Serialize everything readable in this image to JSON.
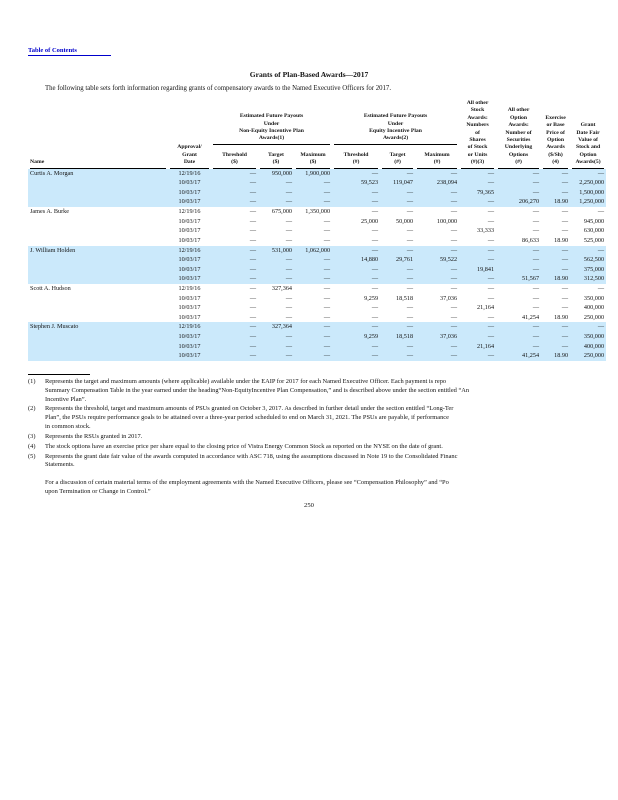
{
  "page": {
    "toc_link": "Table of Contents",
    "title": "Grants of Plan-Based Awards—2017",
    "intro": "The following table sets forth information regarding grants of compensatory awards to the Named Executive Officers for 2017.",
    "page_number": "250"
  },
  "colors": {
    "row_highlight": "#cbe9fb",
    "link_blue": "#0000cc"
  },
  "table": {
    "header": {
      "name": "Name",
      "date": "Approval/\nGrant\nDate",
      "group_non_equity": "Estimated Future Payouts\nUnder\nNon-Equity Incentive Plan\nAwards(1)",
      "group_equity": "Estimated Future Payouts\nUnder\nEquity Incentive Plan\nAwards(2)",
      "threshold_usd": "Threshold\n($)",
      "target_usd": "Target\n($)",
      "maximum_usd": "Maximum\n($)",
      "threshold_num": "Threshold\n(#)",
      "target_num": "Target\n(#)",
      "maximum_num": "Maximum\n(#)",
      "stock_awards": "All other\nStock\nAwards:\nNumbers\nof\nShares\nof Stock\nor Units\n(#)(3)",
      "option_awards": "All other\nOption\nAwards:\nNumber of\nSecurities\nUnderlying\nOptions\n(#)",
      "exercise_price": "Exercise\nor Base\nPrice of\nOption\nAwards\n($/Sh)\n(4)",
      "grant_date_fv": "Grant\nDate Fair\nValue of\nStock and\nOption\nAwards(5)"
    },
    "rows": [
      {
        "name": "Curtis A. Morgan",
        "date": "12/19/16",
        "hl": true,
        "cells": [
          "—",
          "950,000",
          "1,900,000",
          "—",
          "—",
          "—",
          "—",
          "—",
          "—",
          "—"
        ]
      },
      {
        "name": "",
        "date": "10/03/17",
        "hl": true,
        "cells": [
          "—",
          "—",
          "—",
          "59,523",
          "119,047",
          "238,094",
          "—",
          "—",
          "—",
          "2,250,000"
        ]
      },
      {
        "name": "",
        "date": "10/03/17",
        "hl": true,
        "cells": [
          "—",
          "—",
          "—",
          "—",
          "—",
          "—",
          "79,365",
          "—",
          "—",
          "1,500,000"
        ]
      },
      {
        "name": "",
        "date": "10/03/17",
        "hl": true,
        "cells": [
          "—",
          "—",
          "—",
          "—",
          "—",
          "—",
          "—",
          "206,270",
          "18.90",
          "1,250,000"
        ]
      },
      {
        "name": "James A. Burke",
        "date": "12/19/16",
        "hl": false,
        "cells": [
          "—",
          "675,000",
          "1,350,000",
          "—",
          "—",
          "—",
          "—",
          "—",
          "—",
          "—"
        ]
      },
      {
        "name": "",
        "date": "10/03/17",
        "hl": false,
        "cells": [
          "—",
          "—",
          "—",
          "25,000",
          "50,000",
          "100,000",
          "—",
          "—",
          "—",
          "945,000"
        ]
      },
      {
        "name": "",
        "date": "10/03/17",
        "hl": false,
        "cells": [
          "—",
          "—",
          "—",
          "—",
          "—",
          "—",
          "33,333",
          "—",
          "—",
          "630,000"
        ]
      },
      {
        "name": "",
        "date": "10/03/17",
        "hl": false,
        "cells": [
          "—",
          "—",
          "—",
          "—",
          "—",
          "—",
          "—",
          "86,633",
          "18.90",
          "525,000"
        ]
      },
      {
        "name": "J. William Holden",
        "date": "12/19/16",
        "hl": true,
        "cells": [
          "—",
          "531,000",
          "1,062,000",
          "—",
          "—",
          "—",
          "—",
          "—",
          "—",
          "—"
        ]
      },
      {
        "name": "",
        "date": "10/03/17",
        "hl": true,
        "cells": [
          "—",
          "—",
          "—",
          "14,880",
          "29,761",
          "59,522",
          "—",
          "—",
          "—",
          "562,500"
        ]
      },
      {
        "name": "",
        "date": "10/03/17",
        "hl": true,
        "cells": [
          "—",
          "—",
          "—",
          "—",
          "—",
          "—",
          "19,841",
          "—",
          "—",
          "375,000"
        ]
      },
      {
        "name": "",
        "date": "10/03/17",
        "hl": true,
        "cells": [
          "—",
          "—",
          "—",
          "—",
          "—",
          "—",
          "—",
          "51,567",
          "18.90",
          "312,500"
        ]
      },
      {
        "name": "Scott A. Hudson",
        "date": "12/19/16",
        "hl": false,
        "cells": [
          "—",
          "327,364",
          "—",
          "—",
          "—",
          "—",
          "—",
          "—",
          "—",
          "—"
        ]
      },
      {
        "name": "",
        "date": "10/03/17",
        "hl": false,
        "cells": [
          "—",
          "—",
          "—",
          "9,259",
          "18,518",
          "37,036",
          "—",
          "—",
          "—",
          "350,000"
        ]
      },
      {
        "name": "",
        "date": "10/03/17",
        "hl": false,
        "cells": [
          "—",
          "—",
          "—",
          "—",
          "—",
          "—",
          "21,164",
          "—",
          "—",
          "400,000"
        ]
      },
      {
        "name": "",
        "date": "10/03/17",
        "hl": false,
        "cells": [
          "—",
          "—",
          "—",
          "—",
          "—",
          "—",
          "—",
          "41,254",
          "18.90",
          "250,000"
        ]
      },
      {
        "name": "Stephen J. Muscato",
        "date": "12/19/16",
        "hl": true,
        "cells": [
          "—",
          "327,364",
          "—",
          "—",
          "—",
          "—",
          "—",
          "—",
          "—",
          "—"
        ]
      },
      {
        "name": "",
        "date": "10/03/17",
        "hl": true,
        "cells": [
          "—",
          "—",
          "—",
          "9,259",
          "18,518",
          "37,036",
          "—",
          "—",
          "—",
          "350,000"
        ]
      },
      {
        "name": "",
        "date": "10/03/17",
        "hl": true,
        "cells": [
          "—",
          "—",
          "—",
          "—",
          "—",
          "—",
          "21,164",
          "—",
          "—",
          "400,000"
        ]
      },
      {
        "name": "",
        "date": "10/03/17",
        "hl": true,
        "cells": [
          "—",
          "—",
          "—",
          "—",
          "—",
          "—",
          "—",
          "41,254",
          "18.90",
          "250,000"
        ]
      }
    ]
  },
  "footnotes": [
    {
      "marker": "(1)",
      "lines": [
        "Represents the target and maximum amounts (where applicable) available under the EAIP for 2017 for each Named Executive Officer. Each payment is repo",
        "Summary Compensation Table in the year earned under the heading“Non-EquityIncentive Plan Compensation,” and is described above under the section entitled “An",
        "Incentive Plan”."
      ]
    },
    {
      "marker": "(2)",
      "lines": [
        "Represents the threshold, target and maximum amounts of PSUs granted on October 3, 2017. As described in further detail under the section entitled “Long-Ter",
        "Plan”, the PSUs require performance goals to be attained over a three-year period scheduled to end on March 31, 2021. The PSUs are payable, if performance",
        "in common stock."
      ]
    },
    {
      "marker": "(3)",
      "lines": [
        "Represents the RSUs granted in 2017."
      ]
    },
    {
      "marker": "(4)",
      "lines": [
        "The stock options have an exercise price per share equal to the closing price of Vistra Energy Common Stock as reported on the NYSE on the date of grant."
      ]
    },
    {
      "marker": "(5)",
      "lines": [
        "Represents the grant date fair value of the awards computed in accordance with ASC 718, using the assumptions discussed in Note 19 to the Consolidated Financ",
        "Statements."
      ]
    }
  ],
  "closing": {
    "lines": [
      "For a discussion of certain material terms of the employment agreements with the Named Executive Officers, please see “Compensation Philosophy” and “Po",
      "upon Termination or Change in Control.”"
    ]
  }
}
